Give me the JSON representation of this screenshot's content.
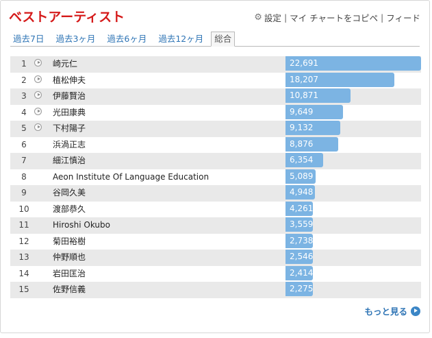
{
  "header": {
    "title": "ベストアーティスト",
    "settings_label": "設定",
    "copy_label": "マイ チャートをコピペ",
    "feed_label": "フィード",
    "separator": "|"
  },
  "tabs": [
    {
      "label": "過去7日",
      "active": false
    },
    {
      "label": "過去3ヶ月",
      "active": false
    },
    {
      "label": "過去6ヶ月",
      "active": false
    },
    {
      "label": "過去12ヶ月",
      "active": false
    },
    {
      "label": "総合",
      "active": true
    }
  ],
  "colors": {
    "title": "#d51a1a",
    "link": "#2e74b5",
    "bar": "#7cb4e3",
    "row_alt": "#e9e9e9"
  },
  "icons": {
    "play": "play-circle-icon",
    "settings": "gear-icon",
    "more": "arrow-right-circle-icon"
  },
  "artists": [
    {
      "rank": "1",
      "name": "崎元仁",
      "count": "22,691",
      "value": 22691,
      "has_play": true
    },
    {
      "rank": "2",
      "name": "植松伸夫",
      "count": "18,207",
      "value": 18207,
      "has_play": true
    },
    {
      "rank": "3",
      "name": "伊藤賢治",
      "count": "10,871",
      "value": 10871,
      "has_play": true
    },
    {
      "rank": "4",
      "name": "光田康典",
      "count": "9,649",
      "value": 9649,
      "has_play": true
    },
    {
      "rank": "5",
      "name": "下村陽子",
      "count": "9,132",
      "value": 9132,
      "has_play": true
    },
    {
      "rank": "6",
      "name": "浜渦正志",
      "count": "8,876",
      "value": 8876,
      "has_play": false
    },
    {
      "rank": "7",
      "name": "細江慎治",
      "count": "6,354",
      "value": 6354,
      "has_play": false
    },
    {
      "rank": "8",
      "name": "Aeon Institute Of Language Education",
      "count": "5,089",
      "value": 5089,
      "has_play": false
    },
    {
      "rank": "9",
      "name": "谷岡久美",
      "count": "4,948",
      "value": 4948,
      "has_play": false
    },
    {
      "rank": "10",
      "name": "渡部恭久",
      "count": "4,261",
      "value": 4261,
      "has_play": false
    },
    {
      "rank": "11",
      "name": "Hiroshi Okubo",
      "count": "3,559",
      "value": 3559,
      "has_play": false
    },
    {
      "rank": "12",
      "name": "菊田裕樹",
      "count": "2,738",
      "value": 2738,
      "has_play": false
    },
    {
      "rank": "13",
      "name": "仲野順也",
      "count": "2,546",
      "value": 2546,
      "has_play": false
    },
    {
      "rank": "14",
      "name": "岩田匡治",
      "count": "2,414",
      "value": 2414,
      "has_play": false
    },
    {
      "rank": "15",
      "name": "佐野信義",
      "count": "2,275",
      "value": 2275,
      "has_play": false
    }
  ],
  "footer": {
    "more_label": "もっと見る"
  }
}
